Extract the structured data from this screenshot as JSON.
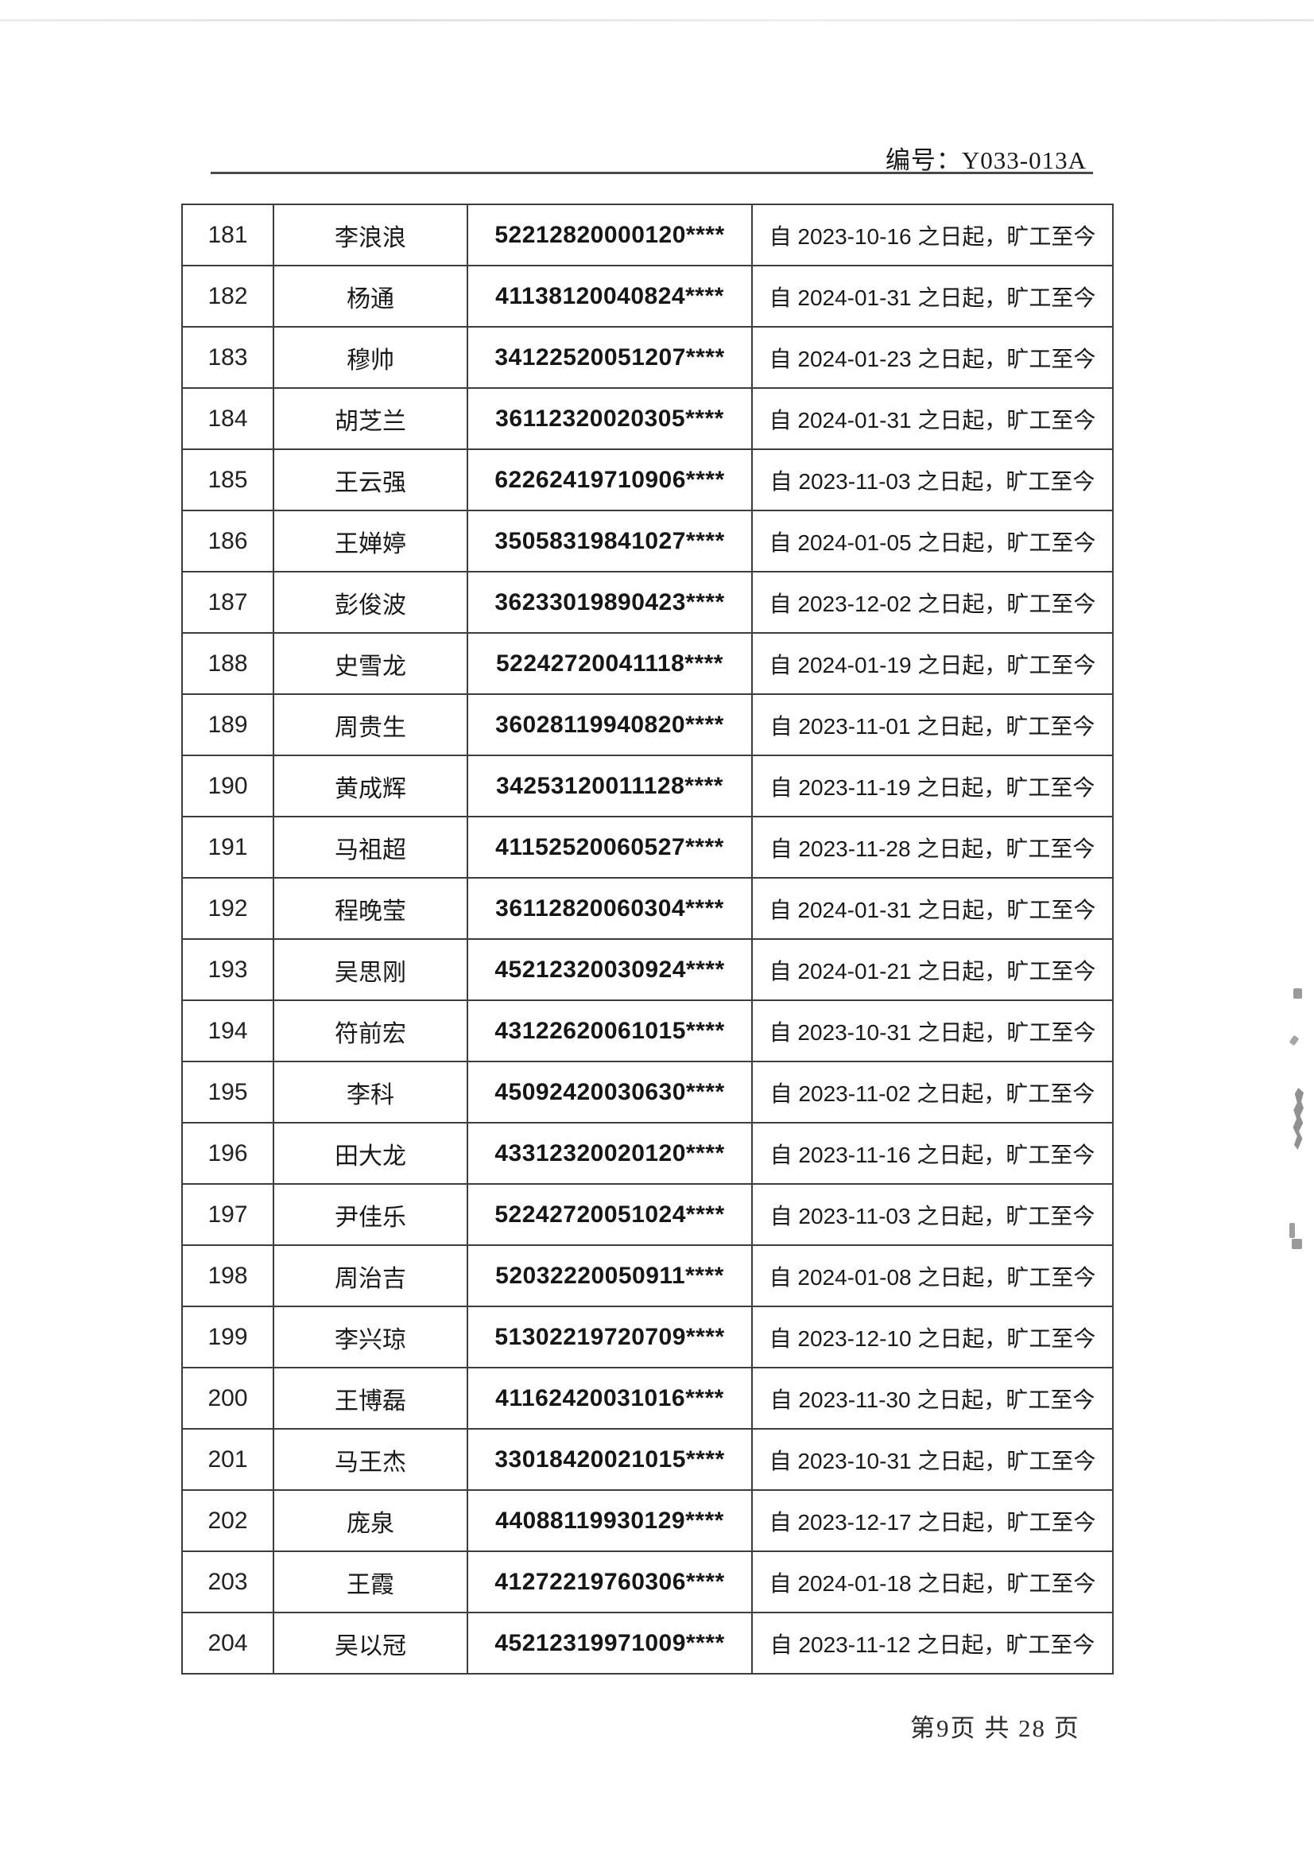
{
  "header": {
    "doc_number": "编号：Y033-013A"
  },
  "table": {
    "rows": [
      {
        "no": "181",
        "name": "李浪浪",
        "id": "52212820000120****",
        "status": "自 2023-10-16 之日起，旷工至今"
      },
      {
        "no": "182",
        "name": "杨通",
        "id": "41138120040824****",
        "status": "自 2024-01-31 之日起，旷工至今"
      },
      {
        "no": "183",
        "name": "穆帅",
        "id": "34122520051207****",
        "status": "自 2024-01-23 之日起，旷工至今"
      },
      {
        "no": "184",
        "name": "胡芝兰",
        "id": "36112320020305****",
        "status": "自 2024-01-31 之日起，旷工至今"
      },
      {
        "no": "185",
        "name": "王云强",
        "id": "62262419710906****",
        "status": "自 2023-11-03 之日起，旷工至今"
      },
      {
        "no": "186",
        "name": "王婵婷",
        "id": "35058319841027****",
        "status": "自 2024-01-05 之日起，旷工至今"
      },
      {
        "no": "187",
        "name": "彭俊波",
        "id": "36233019890423****",
        "status": "自 2023-12-02 之日起，旷工至今"
      },
      {
        "no": "188",
        "name": "史雪龙",
        "id": "52242720041118****",
        "status": "自 2024-01-19 之日起，旷工至今"
      },
      {
        "no": "189",
        "name": "周贵生",
        "id": "36028119940820****",
        "status": "自 2023-11-01 之日起，旷工至今"
      },
      {
        "no": "190",
        "name": "黄成辉",
        "id": "34253120011128****",
        "status": "自 2023-11-19 之日起，旷工至今"
      },
      {
        "no": "191",
        "name": "马祖超",
        "id": "41152520060527****",
        "status": "自 2023-11-28 之日起，旷工至今"
      },
      {
        "no": "192",
        "name": "程晚莹",
        "id": "36112820060304****",
        "status": "自 2024-01-31 之日起，旷工至今"
      },
      {
        "no": "193",
        "name": "吴思刚",
        "id": "45212320030924****",
        "status": "自 2024-01-21 之日起，旷工至今"
      },
      {
        "no": "194",
        "name": "符前宏",
        "id": "43122620061015****",
        "status": "自 2023-10-31 之日起，旷工至今"
      },
      {
        "no": "195",
        "name": "李科",
        "id": "45092420030630****",
        "status": "自 2023-11-02 之日起，旷工至今"
      },
      {
        "no": "196",
        "name": "田大龙",
        "id": "43312320020120****",
        "status": "自 2023-11-16 之日起，旷工至今"
      },
      {
        "no": "197",
        "name": "尹佳乐",
        "id": "52242720051024****",
        "status": "自 2023-11-03 之日起，旷工至今"
      },
      {
        "no": "198",
        "name": "周治吉",
        "id": "52032220050911****",
        "status": "自 2024-01-08 之日起，旷工至今"
      },
      {
        "no": "199",
        "name": "李兴琼",
        "id": "51302219720709****",
        "status": "自 2023-12-10 之日起，旷工至今"
      },
      {
        "no": "200",
        "name": "王博磊",
        "id": "41162420031016****",
        "status": "自 2023-11-30 之日起，旷工至今"
      },
      {
        "no": "201",
        "name": "马王杰",
        "id": "33018420021015****",
        "status": "自 2023-10-31 之日起，旷工至今"
      },
      {
        "no": "202",
        "name": "庞泉",
        "id": "44088119930129****",
        "status": "自 2023-12-17 之日起，旷工至今"
      },
      {
        "no": "203",
        "name": "王霞",
        "id": "41272219760306****",
        "status": "自 2024-01-18 之日起，旷工至今"
      },
      {
        "no": "204",
        "name": "吴以冠",
        "id": "45212319971009****",
        "status": "自 2023-11-12 之日起，旷工至今"
      }
    ]
  },
  "footer": {
    "page_info": "第9页 共 28 页"
  },
  "colors": {
    "ink": "#1c1c1c",
    "table_border": "#3d3d3d"
  }
}
